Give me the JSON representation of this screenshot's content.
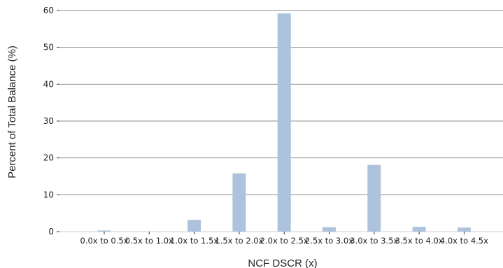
{
  "chart_data": {
    "type": "bar",
    "categories": [
      "0.0x to 0.5x",
      "0.5x to 1.0x",
      "1.0x to 1.5x",
      "1.5x to 2.0x",
      "2.0x to 2.5x",
      "2.5x to 3.0x",
      "3.0x to 3.5x",
      "3.5x to 4.0x",
      "4.0x to 4.5x"
    ],
    "values": [
      0.3,
      0,
      3.2,
      15.8,
      59.2,
      1.2,
      18.1,
      1.3,
      1.1
    ],
    "title": "",
    "xlabel": "NCF DSCR (x)",
    "ylabel": "Percent of Total Balance (%)",
    "ylim": [
      0,
      60
    ],
    "yticks": [
      0,
      10,
      20,
      30,
      40,
      50,
      60
    ],
    "grid": true,
    "bar_color": "#adc2dc",
    "grid_color": "#8c8c8c"
  }
}
